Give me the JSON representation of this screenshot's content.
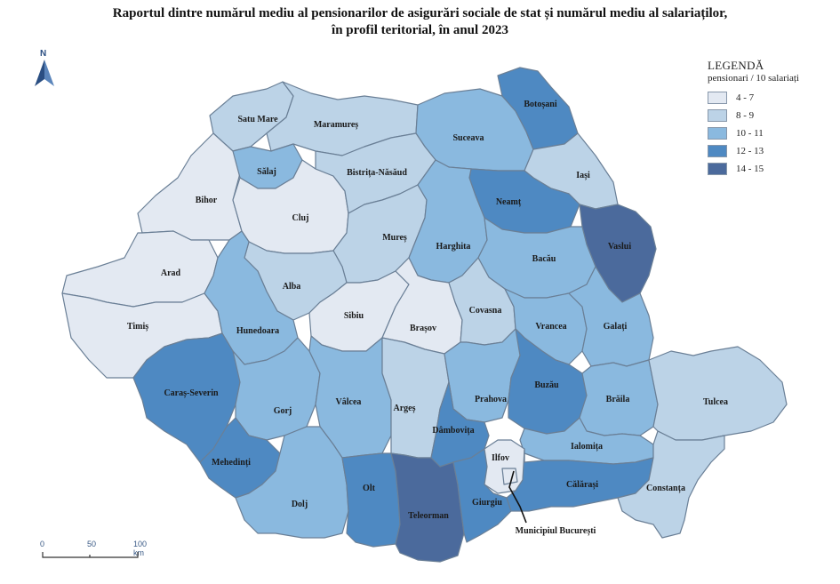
{
  "title": {
    "line1": "Raportul dintre numărul mediu al pensionarilor de asigurări sociale de stat și numărul mediu al salariaților,",
    "line2": "în profil teritorial, în anul 2023"
  },
  "legend": {
    "title": "LEGENDĂ",
    "subtitle": "pensionari / 10 salariați",
    "classes": [
      {
        "label": "4 - 7",
        "color": "#e3e9f2"
      },
      {
        "label": "8 - 9",
        "color": "#bcd3e7"
      },
      {
        "label": "10 - 11",
        "color": "#8ab9df"
      },
      {
        "label": "12 - 13",
        "color": "#4e89c2"
      },
      {
        "label": "14 - 15",
        "color": "#4b6a9c"
      }
    ]
  },
  "north_label": "N",
  "scale_bar": {
    "labels": [
      "0",
      "50",
      "100 km"
    ]
  },
  "counties": [
    {
      "name": "Satu Mare",
      "class": "8 - 9"
    },
    {
      "name": "Maramureș",
      "class": "8 - 9"
    },
    {
      "name": "Suceava",
      "class": "10 - 11"
    },
    {
      "name": "Botoșani",
      "class": "12 - 13"
    },
    {
      "name": "Bihor",
      "class": "4 - 7"
    },
    {
      "name": "Sălaj",
      "class": "10 - 11"
    },
    {
      "name": "Cluj",
      "class": "4 - 7"
    },
    {
      "name": "Bistrița-Năsăud",
      "class": "8 - 9"
    },
    {
      "name": "Iași",
      "class": "8 - 9"
    },
    {
      "name": "Neamț",
      "class": "12 - 13"
    },
    {
      "name": "Vaslui",
      "class": "14 - 15"
    },
    {
      "name": "Arad",
      "class": "4 - 7"
    },
    {
      "name": "Mureș",
      "class": "8 - 9"
    },
    {
      "name": "Harghita",
      "class": "10 - 11"
    },
    {
      "name": "Bacău",
      "class": "10 - 11"
    },
    {
      "name": "Alba",
      "class": "8 - 9"
    },
    {
      "name": "Timiș",
      "class": "4 - 7"
    },
    {
      "name": "Hunedoara",
      "class": "10 - 11"
    },
    {
      "name": "Sibiu",
      "class": "4 - 7"
    },
    {
      "name": "Brașov",
      "class": "4 - 7"
    },
    {
      "name": "Covasna",
      "class": "8 - 9"
    },
    {
      "name": "Vrancea",
      "class": "10 - 11"
    },
    {
      "name": "Galați",
      "class": "10 - 11"
    },
    {
      "name": "Caraș-Severin",
      "class": "12 - 13"
    },
    {
      "name": "Gorj",
      "class": "10 - 11"
    },
    {
      "name": "Vâlcea",
      "class": "10 - 11"
    },
    {
      "name": "Argeș",
      "class": "8 - 9"
    },
    {
      "name": "Prahova",
      "class": "10 - 11"
    },
    {
      "name": "Buzău",
      "class": "12 - 13"
    },
    {
      "name": "Brăila",
      "class": "10 - 11"
    },
    {
      "name": "Tulcea",
      "class": "8 - 9"
    },
    {
      "name": "Dâmbovița",
      "class": "12 - 13"
    },
    {
      "name": "Ialomița",
      "class": "10 - 11"
    },
    {
      "name": "Mehedinți",
      "class": "12 - 13"
    },
    {
      "name": "Dolj",
      "class": "10 - 11"
    },
    {
      "name": "Olt",
      "class": "12 - 13"
    },
    {
      "name": "Teleorman",
      "class": "14 - 15"
    },
    {
      "name": "Giurgiu",
      "class": "12 - 13"
    },
    {
      "name": "Ilfov",
      "class": "4 - 7"
    },
    {
      "name": "Călărași",
      "class": "12 - 13"
    },
    {
      "name": "Constanța",
      "class": "8 - 9"
    },
    {
      "name": "Municipiul București",
      "class": "4 - 7"
    }
  ]
}
